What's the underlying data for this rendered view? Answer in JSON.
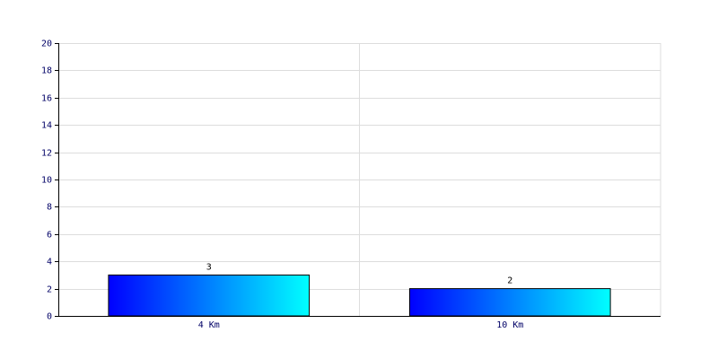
{
  "chart_data": {
    "type": "bar",
    "categories": [
      "4 Km",
      "10 Km"
    ],
    "values": [
      3,
      2
    ],
    "gradient": [
      "#0000ff",
      "#00ffff"
    ],
    "ylim": [
      0,
      20
    ],
    "yticks": [
      0,
      2,
      4,
      6,
      8,
      10,
      12,
      14,
      16,
      18,
      20
    ],
    "grid": true
  }
}
